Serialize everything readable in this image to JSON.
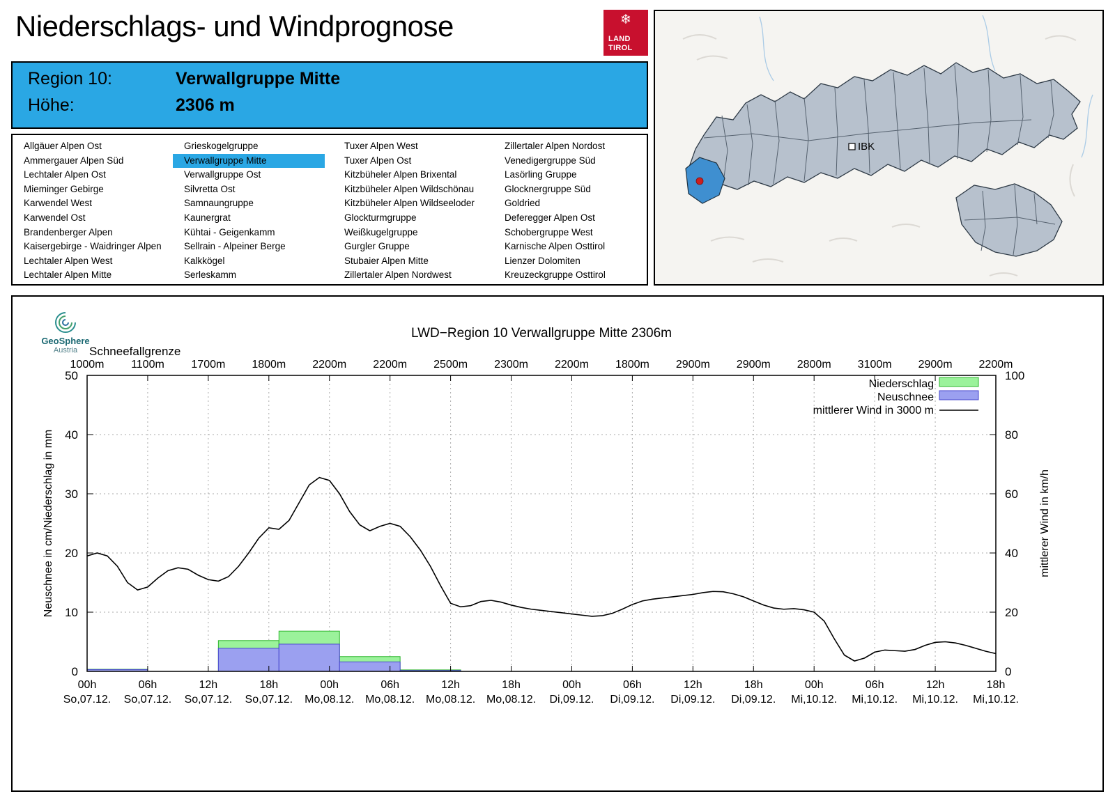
{
  "page": {
    "title": "Niederschlags- und Windprognose"
  },
  "logo": {
    "line1": "LAND",
    "line2": "TIROL"
  },
  "region_header": {
    "region_label": "Region 10:",
    "region_name": "Verwallgruppe Mitte",
    "hoehe_label": "Höhe:",
    "hoehe_value": "2306 m"
  },
  "region_list": {
    "selected": "Verwallgruppe Mitte",
    "columns": [
      [
        "Allgäuer Alpen Ost",
        "Ammergauer Alpen Süd",
        "Lechtaler Alpen Ost",
        "Mieminger Gebirge",
        "Karwendel West",
        "Karwendel Ost",
        "Brandenberger Alpen",
        "Kaisergebirge - Waidringer Alpen",
        "Lechtaler Alpen West",
        "Lechtaler Alpen Mitte"
      ],
      [
        "Grieskogelgruppe",
        "Verwallgruppe Mitte",
        "Verwallgruppe Ost",
        "Silvretta Ost",
        "Samnaungruppe",
        "Kaunergrat",
        "Kühtai - Geigenkamm",
        "Sellrain - Alpeiner Berge",
        "Kalkkögel",
        "Serleskamm"
      ],
      [
        "Tuxer Alpen West",
        "Tuxer Alpen Ost",
        "Kitzbüheler Alpen Brixental",
        "Kitzbüheler Alpen Wildschönau",
        "Kitzbüheler Alpen Wildseeloder",
        "Glockturmgruppe",
        "Weißkugelgruppe",
        "Gurgler Gruppe",
        "Stubaier Alpen Mitte",
        "Zillertaler Alpen Nordwest"
      ],
      [
        "Zillertaler Alpen Nordost",
        "Venedigergruppe Süd",
        "Lasörling Gruppe",
        "Glocknergruppe Süd",
        "Goldried",
        "Deferegger Alpen Ost",
        "Schobergruppe West",
        "Karnische Alpen Osttirol",
        "Lienzer Dolomiten",
        "Kreuzeckgruppe Osttirol"
      ]
    ]
  },
  "map": {
    "city_label": "IBK"
  },
  "geosphere": {
    "name": "GeoSphere",
    "sub": "Austria"
  },
  "palette": {
    "header_blue": "#2aa7e4",
    "highlight_blue": "#2aa7e4",
    "logo_red": "#c8102e",
    "map_region": "#b7c1cd",
    "map_selected": "#3f8fd0",
    "map_dot_red": "#cc1f1f"
  },
  "chart_data": {
    "type": "line+bar",
    "title": "LWD−Region 10 Verwallgruppe Mitte 2306m",
    "snowline_label": "Schneefallgrenze",
    "snowline_values": [
      "1000m",
      "1100m",
      "1700m",
      "1800m",
      "2200m",
      "2200m",
      "2500m",
      "2300m",
      "2200m",
      "1800m",
      "2900m",
      "2900m",
      "2800m",
      "3100m",
      "2900m",
      "2200m"
    ],
    "ylabel_left": "Neuschnee in cm/Niederschlag in mm",
    "ylabel_right": "mittlerer Wind in km/h",
    "ylim_left": [
      0,
      50
    ],
    "ylim_right": [
      0,
      100
    ],
    "grid": "dotted",
    "legend_position": "top-right",
    "tick_step_hours": 6,
    "x_ticks": [
      {
        "hour": "00h",
        "date": "So,07.12."
      },
      {
        "hour": "06h",
        "date": "So,07.12."
      },
      {
        "hour": "12h",
        "date": "So,07.12."
      },
      {
        "hour": "18h",
        "date": "So,07.12."
      },
      {
        "hour": "00h",
        "date": "Mo,08.12."
      },
      {
        "hour": "06h",
        "date": "Mo,08.12."
      },
      {
        "hour": "12h",
        "date": "Mo,08.12."
      },
      {
        "hour": "18h",
        "date": "Mo,08.12."
      },
      {
        "hour": "00h",
        "date": "Di,09.12."
      },
      {
        "hour": "06h",
        "date": "Di,09.12."
      },
      {
        "hour": "12h",
        "date": "Di,09.12."
      },
      {
        "hour": "18h",
        "date": "Di,09.12."
      },
      {
        "hour": "00h",
        "date": "Mi,10.12."
      },
      {
        "hour": "06h",
        "date": "Mi,10.12."
      },
      {
        "hour": "12h",
        "date": "Mi,10.12."
      },
      {
        "hour": "18h",
        "date": "Mi,10.12."
      }
    ],
    "legend": [
      {
        "label": "Niederschlag",
        "type": "box",
        "fill": "#9bf29b",
        "stroke": "#2db52d"
      },
      {
        "label": "Neuschnee",
        "type": "box",
        "fill": "#9ba0f0",
        "stroke": "#4646cc"
      },
      {
        "label": "mittlerer Wind in 3000 m",
        "type": "line",
        "stroke": "#000000"
      }
    ],
    "colors": {
      "niederschlag_fill": "#9bf29b",
      "niederschlag_stroke": "#2db52d",
      "neuschnee_fill": "#9ba0f0",
      "neuschnee_stroke": "#4646cc",
      "wind": "#000000",
      "grid": "#aaaaaa"
    },
    "bars": {
      "bin_hours": 6,
      "start_hours": [
        0,
        13,
        19,
        25,
        31
      ],
      "niederschlag_mm": [
        0.35,
        5.2,
        6.8,
        2.5,
        0.25
      ],
      "neuschnee_cm": [
        0.3,
        3.9,
        4.6,
        1.6,
        0.15
      ]
    },
    "wind_kmh": {
      "start_hour": 0,
      "step_hours": 1,
      "values": [
        39,
        40,
        39,
        35.5,
        30,
        27.5,
        28.5,
        31.5,
        34,
        35,
        34.5,
        32.5,
        31,
        30.5,
        32,
        35.5,
        40,
        45,
        48.5,
        48,
        51,
        57,
        63,
        65.5,
        64.5,
        60,
        54,
        49.5,
        47.5,
        49,
        50,
        49,
        45.5,
        41,
        35.5,
        29,
        23,
        21.8,
        22.2,
        23.6,
        24,
        23.4,
        22.4,
        21.6,
        21,
        20.6,
        20.2,
        19.8,
        19.4,
        19,
        18.6,
        18.8,
        19.6,
        21,
        22.6,
        23.8,
        24.4,
        24.8,
        25.2,
        25.6,
        26,
        26.6,
        27,
        26.9,
        26.2,
        25.2,
        23.8,
        22.4,
        21.4,
        21,
        21.2,
        20.8,
        20,
        17,
        11,
        5.5,
        3.5,
        4.5,
        6.5,
        7.2,
        7,
        6.8,
        7.4,
        8.8,
        9.8,
        10,
        9.6,
        8.8,
        7.8,
        6.8,
        6
      ]
    }
  }
}
